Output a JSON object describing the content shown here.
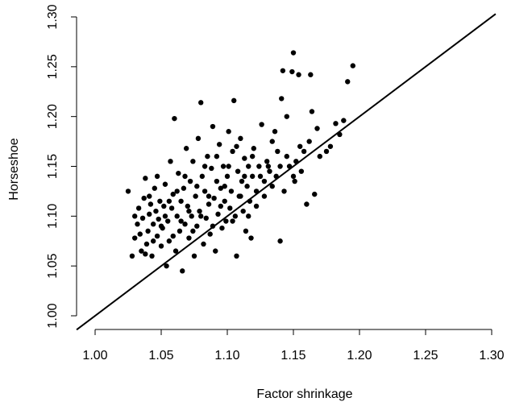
{
  "chart_data": {
    "type": "scatter",
    "title": "",
    "xlabel": "Factor shrinkage",
    "ylabel": "Horseshoe",
    "xlim": [
      1.0,
      1.3
    ],
    "ylim": [
      1.0,
      1.3
    ],
    "xticks": [
      "1.00",
      "1.05",
      "1.10",
      "1.15",
      "1.20",
      "1.25",
      "1.30"
    ],
    "yticks": [
      "1.00",
      "1.05",
      "1.10",
      "1.15",
      "1.20",
      "1.25",
      "1.30"
    ],
    "reference_line": {
      "slope": 1,
      "intercept": 0,
      "label": ""
    },
    "grid": false,
    "legend": "none",
    "series": [
      {
        "points": [
          [
            1.025,
            1.125
          ],
          [
            1.028,
            1.06
          ],
          [
            1.03,
            1.078
          ],
          [
            1.032,
            1.092
          ],
          [
            1.033,
            1.108
          ],
          [
            1.035,
            1.065
          ],
          [
            1.036,
            1.098
          ],
          [
            1.037,
            1.118
          ],
          [
            1.038,
            1.138
          ],
          [
            1.039,
            1.072
          ],
          [
            1.04,
            1.085
          ],
          [
            1.041,
            1.102
          ],
          [
            1.042,
            1.112
          ],
          [
            1.043,
            1.06
          ],
          [
            1.044,
            1.092
          ],
          [
            1.045,
            1.128
          ],
          [
            1.046,
            1.105
          ],
          [
            1.047,
            1.08
          ],
          [
            1.048,
            1.097
          ],
          [
            1.049,
            1.115
          ],
          [
            1.05,
            1.07
          ],
          [
            1.051,
            1.088
          ],
          [
            1.052,
            1.11
          ],
          [
            1.053,
            1.132
          ],
          [
            1.054,
            1.05
          ],
          [
            1.055,
            1.095
          ],
          [
            1.056,
            1.075
          ],
          [
            1.057,
            1.155
          ],
          [
            1.058,
            1.108
          ],
          [
            1.059,
            1.122
          ],
          [
            1.06,
            1.198
          ],
          [
            1.061,
            1.065
          ],
          [
            1.062,
            1.1
          ],
          [
            1.063,
            1.143
          ],
          [
            1.064,
            1.085
          ],
          [
            1.065,
            1.115
          ],
          [
            1.066,
            1.045
          ],
          [
            1.067,
            1.128
          ],
          [
            1.068,
            1.092
          ],
          [
            1.069,
            1.168
          ],
          [
            1.07,
            1.11
          ],
          [
            1.071,
            1.078
          ],
          [
            1.072,
            1.135
          ],
          [
            1.073,
            1.1
          ],
          [
            1.074,
            1.155
          ],
          [
            1.075,
            1.06
          ],
          [
            1.076,
            1.12
          ],
          [
            1.077,
            1.09
          ],
          [
            1.078,
            1.178
          ],
          [
            1.079,
            1.105
          ],
          [
            1.08,
            1.214
          ],
          [
            1.081,
            1.14
          ],
          [
            1.082,
            1.072
          ],
          [
            1.083,
            1.125
          ],
          [
            1.084,
            1.098
          ],
          [
            1.085,
            1.16
          ],
          [
            1.086,
            1.112
          ],
          [
            1.087,
            1.082
          ],
          [
            1.088,
            1.148
          ],
          [
            1.089,
            1.19
          ],
          [
            1.09,
            1.118
          ],
          [
            1.091,
            1.065
          ],
          [
            1.092,
            1.135
          ],
          [
            1.093,
            1.102
          ],
          [
            1.094,
            1.172
          ],
          [
            1.095,
            1.128
          ],
          [
            1.096,
            1.088
          ],
          [
            1.097,
            1.15
          ],
          [
            1.098,
            1.115
          ],
          [
            1.099,
            1.095
          ],
          [
            1.1,
            1.14
          ],
          [
            1.101,
            1.185
          ],
          [
            1.102,
            1.108
          ],
          [
            1.103,
            1.125
          ],
          [
            1.104,
            1.165
          ],
          [
            1.105,
            1.216
          ],
          [
            1.106,
            1.1
          ],
          [
            1.107,
            1.06
          ],
          [
            1.108,
            1.145
          ],
          [
            1.109,
            1.12
          ],
          [
            1.11,
            1.178
          ],
          [
            1.111,
            1.135
          ],
          [
            1.112,
            1.105
          ],
          [
            1.113,
            1.158
          ],
          [
            1.114,
            1.085
          ],
          [
            1.115,
            1.13
          ],
          [
            1.116,
            1.15
          ],
          [
            1.117,
            1.115
          ],
          [
            1.118,
            1.078
          ],
          [
            1.119,
            1.14
          ],
          [
            1.12,
            1.168
          ],
          [
            1.122,
            1.125
          ],
          [
            1.124,
            1.15
          ],
          [
            1.126,
            1.192
          ],
          [
            1.128,
            1.135
          ],
          [
            1.13,
            1.155
          ],
          [
            1.132,
            1.145
          ],
          [
            1.134,
            1.175
          ],
          [
            1.136,
            1.185
          ],
          [
            1.138,
            1.165
          ],
          [
            1.14,
            1.075
          ],
          [
            1.141,
            1.218
          ],
          [
            1.142,
            1.246
          ],
          [
            1.143,
            1.125
          ],
          [
            1.145,
            1.2
          ],
          [
            1.147,
            1.15
          ],
          [
            1.149,
            1.245
          ],
          [
            1.15,
            1.264
          ],
          [
            1.151,
            1.135
          ],
          [
            1.152,
            1.155
          ],
          [
            1.154,
            1.242
          ],
          [
            1.156,
            1.145
          ],
          [
            1.158,
            1.165
          ],
          [
            1.16,
            1.112
          ],
          [
            1.162,
            1.175
          ],
          [
            1.163,
            1.242
          ],
          [
            1.164,
            1.205
          ],
          [
            1.166,
            1.122
          ],
          [
            1.168,
            1.188
          ],
          [
            1.17,
            1.16
          ],
          [
            1.175,
            1.165
          ],
          [
            1.178,
            1.17
          ],
          [
            1.182,
            1.193
          ],
          [
            1.185,
            1.182
          ],
          [
            1.188,
            1.196
          ],
          [
            1.191,
            1.235
          ],
          [
            1.195,
            1.251
          ],
          [
            1.03,
            1.1
          ],
          [
            1.034,
            1.082
          ],
          [
            1.038,
            1.062
          ],
          [
            1.041,
            1.12
          ],
          [
            1.044,
            1.075
          ],
          [
            1.047,
            1.14
          ],
          [
            1.05,
            1.09
          ],
          [
            1.053,
            1.1
          ],
          [
            1.056,
            1.115
          ],
          [
            1.059,
            1.08
          ],
          [
            1.062,
            1.125
          ],
          [
            1.065,
            1.095
          ],
          [
            1.068,
            1.14
          ],
          [
            1.071,
            1.105
          ],
          [
            1.074,
            1.085
          ],
          [
            1.077,
            1.13
          ],
          [
            1.08,
            1.1
          ],
          [
            1.083,
            1.15
          ],
          [
            1.086,
            1.12
          ],
          [
            1.089,
            1.09
          ],
          [
            1.092,
            1.16
          ],
          [
            1.095,
            1.11
          ],
          [
            1.098,
            1.13
          ],
          [
            1.101,
            1.15
          ],
          [
            1.104,
            1.095
          ],
          [
            1.107,
            1.17
          ],
          [
            1.11,
            1.12
          ],
          [
            1.113,
            1.14
          ],
          [
            1.116,
            1.1
          ],
          [
            1.119,
            1.16
          ],
          [
            1.122,
            1.11
          ],
          [
            1.125,
            1.14
          ],
          [
            1.128,
            1.12
          ],
          [
            1.131,
            1.15
          ],
          [
            1.134,
            1.13
          ],
          [
            1.137,
            1.14
          ],
          [
            1.14,
            1.15
          ],
          [
            1.145,
            1.16
          ],
          [
            1.15,
            1.14
          ],
          [
            1.155,
            1.17
          ]
        ]
      }
    ]
  }
}
